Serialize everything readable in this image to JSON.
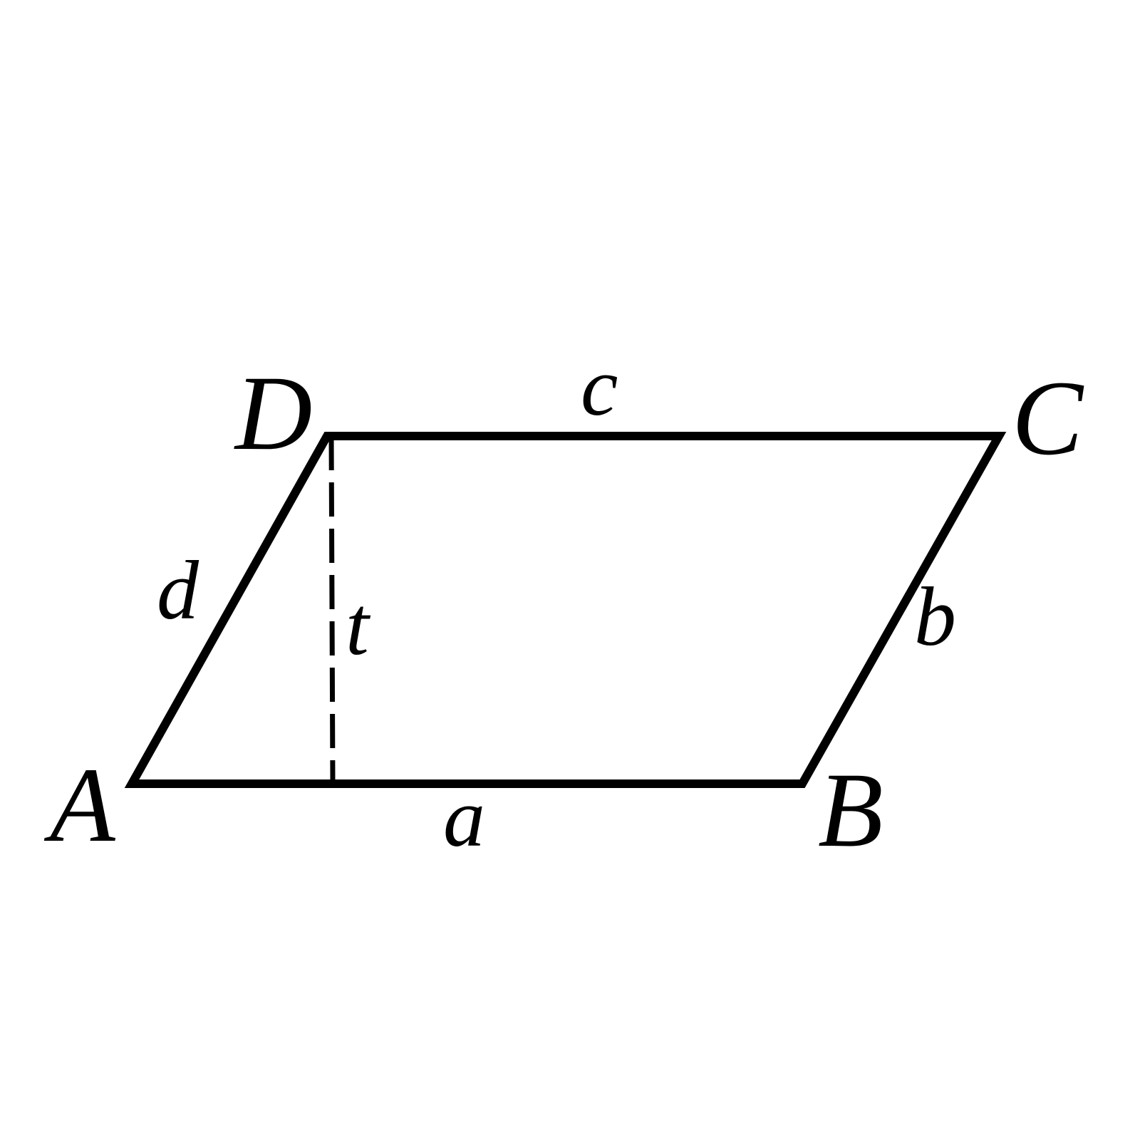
{
  "diagram": {
    "vertices": {
      "A": "A",
      "B": "B",
      "C": "C",
      "D": "D"
    },
    "sides": {
      "bottom": "a",
      "top": "c",
      "left": "d",
      "right": "b",
      "height": "t"
    },
    "colors": {
      "stroke": "#000000",
      "background": "#ffffff"
    }
  }
}
